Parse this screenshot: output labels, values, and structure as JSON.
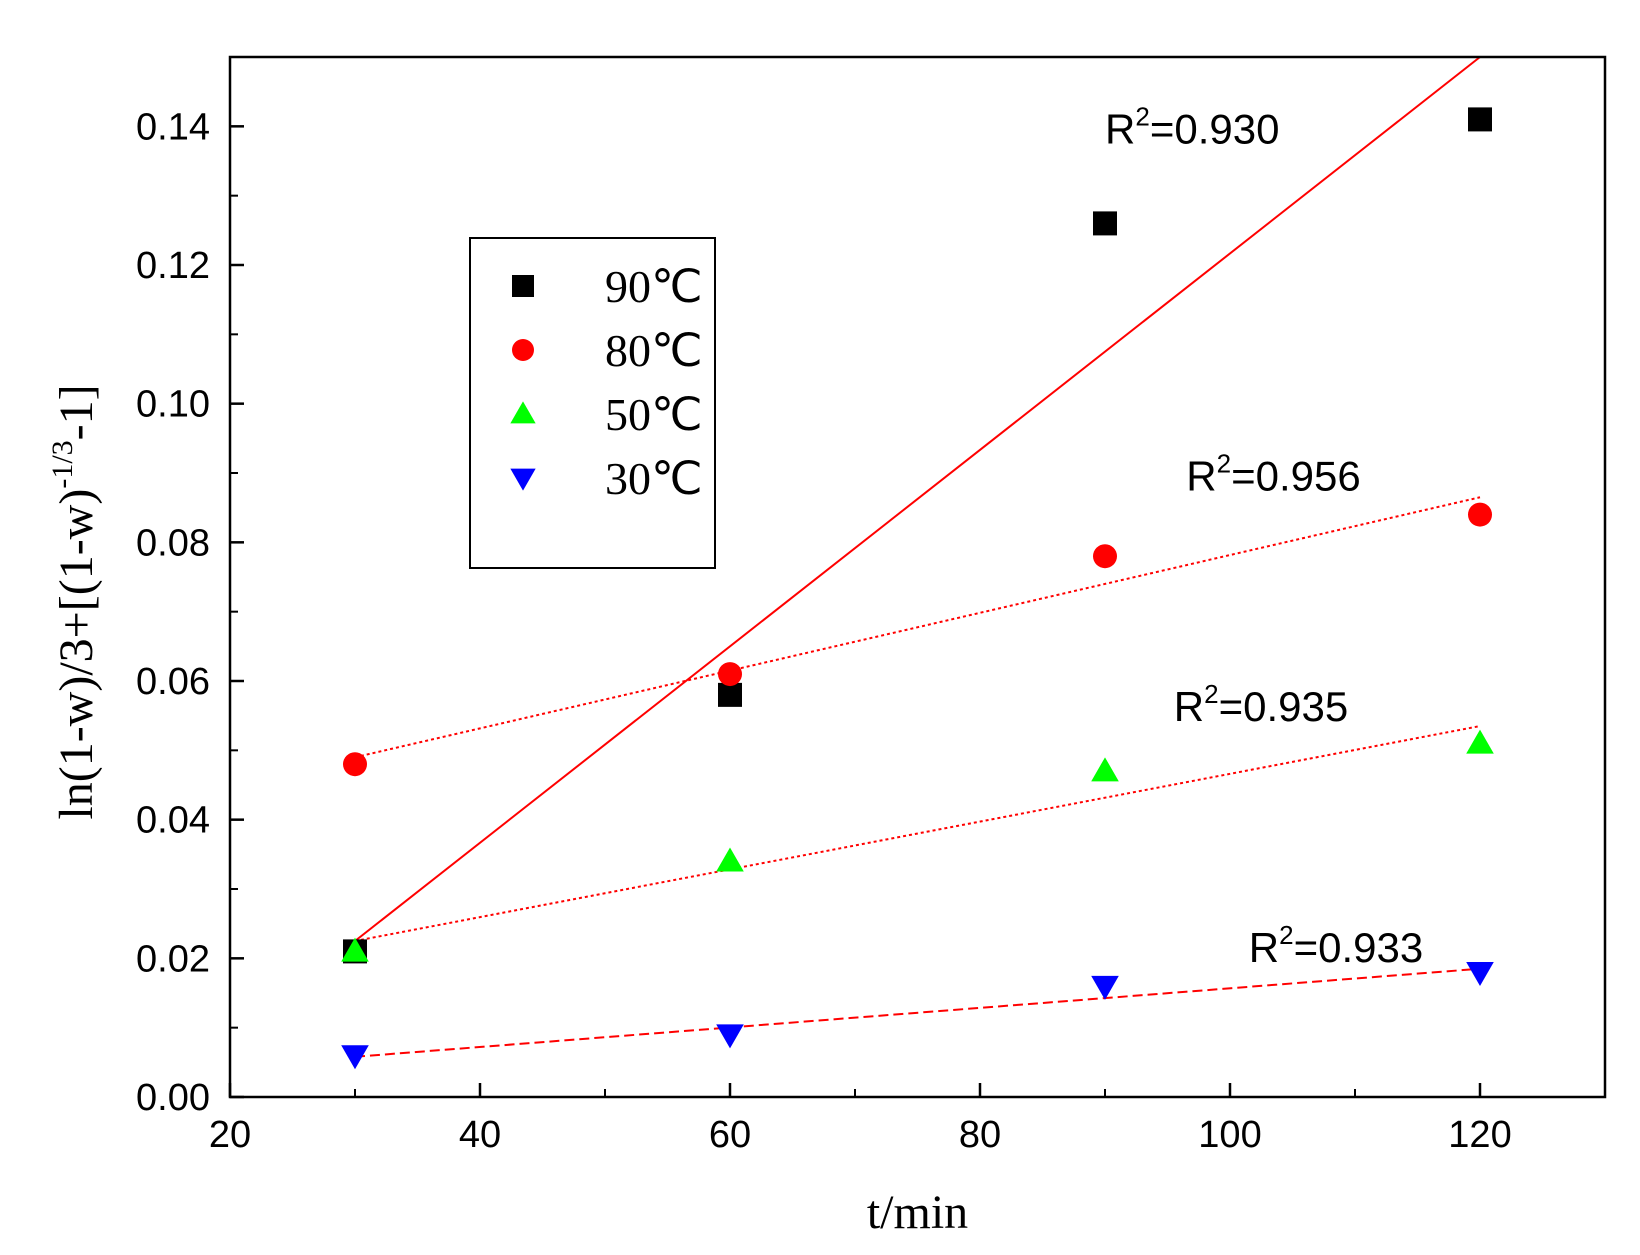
{
  "chart_data": {
    "type": "scatter",
    "title": "",
    "xlabel": "t/min",
    "ylabel": "ln(1-w)/3+[(1-w)^(-1/3)-1]",
    "ylabel_parts": {
      "main": "ln(1-w)/3+[(1-w)",
      "sup": "-1/3",
      "tail": "-1]"
    },
    "xlim": [
      20,
      130
    ],
    "ylim": [
      0.0,
      0.15
    ],
    "xticks": [
      20,
      40,
      60,
      80,
      100,
      120
    ],
    "xtick_labels": [
      "20",
      "40",
      "60",
      "80",
      "100",
      "120"
    ],
    "yticks": [
      0.0,
      0.02,
      0.04,
      0.06,
      0.08,
      0.1,
      0.12,
      0.14
    ],
    "ytick_labels": [
      "0.00",
      "0.02",
      "0.04",
      "0.06",
      "0.08",
      "0.10",
      "0.12",
      "0.14"
    ],
    "legend_position": "upper-left",
    "series": [
      {
        "name": "90℃",
        "marker": "square",
        "color": "#000000",
        "x": [
          30,
          60,
          90,
          120
        ],
        "y": [
          0.021,
          0.058,
          0.126,
          0.141
        ],
        "fit": {
          "x": [
            30,
            120
          ],
          "y": [
            0.0225,
            0.15
          ],
          "style": "solid"
        },
        "r2_label": "0.930",
        "r2_anchor": [
          90,
          0.1375
        ]
      },
      {
        "name": "80℃",
        "marker": "circle",
        "color": "#ff0000",
        "x": [
          30,
          60,
          90,
          120
        ],
        "y": [
          0.048,
          0.061,
          0.078,
          0.084
        ],
        "fit": {
          "x": [
            30,
            120
          ],
          "y": [
            0.049,
            0.0865
          ],
          "style": "dotted"
        },
        "r2_label": "0.956",
        "r2_anchor": [
          96.5,
          0.0875
        ]
      },
      {
        "name": "50℃",
        "marker": "triangle-up",
        "color": "#00ff00",
        "x": [
          30,
          60,
          90,
          120
        ],
        "y": [
          0.021,
          0.034,
          0.047,
          0.051
        ],
        "fit": {
          "x": [
            30,
            120
          ],
          "y": [
            0.0225,
            0.0535
          ],
          "style": "dotted"
        },
        "r2_label": "0.935",
        "r2_anchor": [
          95.5,
          0.0542
        ]
      },
      {
        "name": "30℃",
        "marker": "triangle-down",
        "color": "#0000ff",
        "x": [
          30,
          60,
          90,
          120
        ],
        "y": [
          0.006,
          0.009,
          0.016,
          0.018
        ],
        "fit": {
          "x": [
            30,
            120
          ],
          "y": [
            0.0058,
            0.0185
          ],
          "style": "dashed"
        },
        "r2_label": "0.933",
        "r2_anchor": [
          101.5,
          0.0195
        ]
      }
    ],
    "r2_prefix": "R",
    "r2_sup": "2",
    "fit_color": "#ff0000"
  }
}
